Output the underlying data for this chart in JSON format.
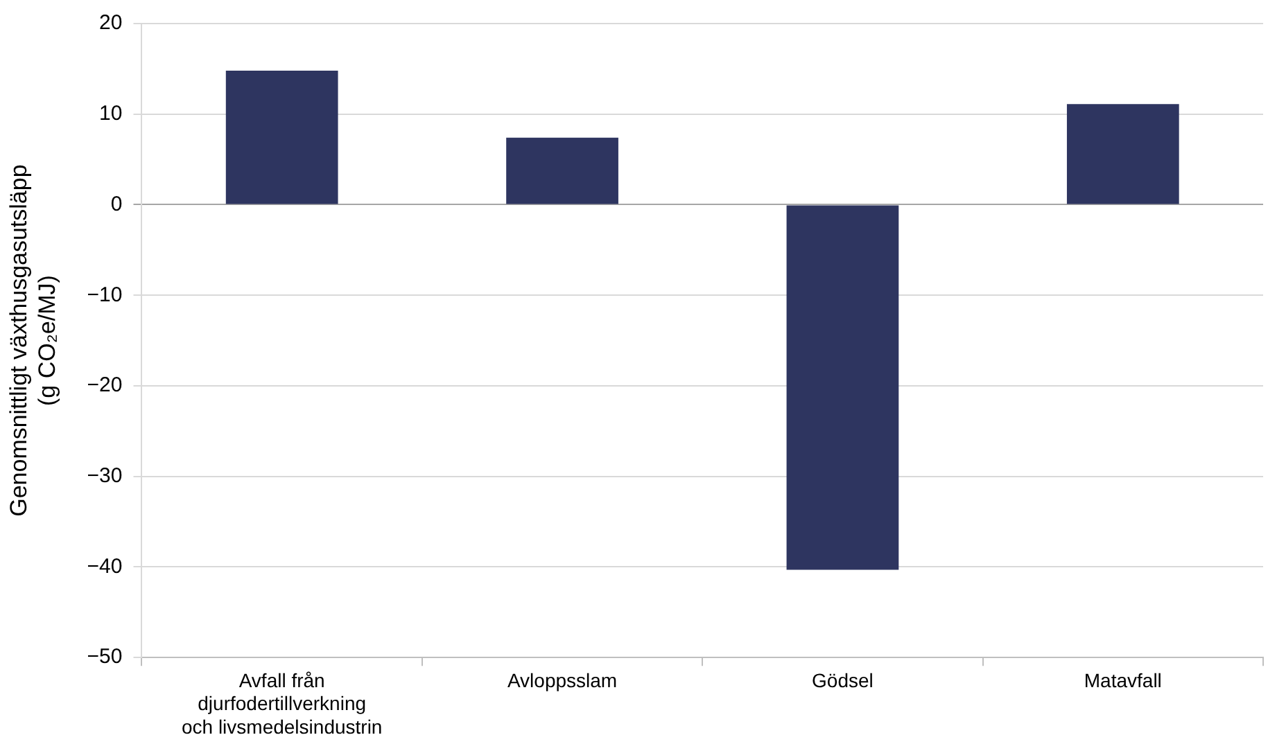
{
  "chart_data": {
    "type": "bar",
    "ylabel": "Genomsnittligt växthusgasutsläpp\n(g CO₂e/MJ)",
    "categories": [
      "Avfall från\ndjurfodertillverkning\noch livsmedelsindustrin",
      "Avloppsslam",
      "Gödsel",
      "Matavfall"
    ],
    "values": [
      14.8,
      7.4,
      -40.3,
      11.1
    ],
    "color": "#2e3560",
    "ylim": [
      -50,
      20
    ],
    "yticks": [
      20,
      10,
      0,
      {
        "value": -10,
        "label": "−10"
      },
      {
        "value": -20,
        "label": "−20"
      },
      {
        "value": -30,
        "label": "−30"
      },
      {
        "value": -40,
        "label": "−40"
      },
      {
        "value": -50,
        "label": "−50"
      }
    ],
    "grid": "y",
    "legend": false
  }
}
